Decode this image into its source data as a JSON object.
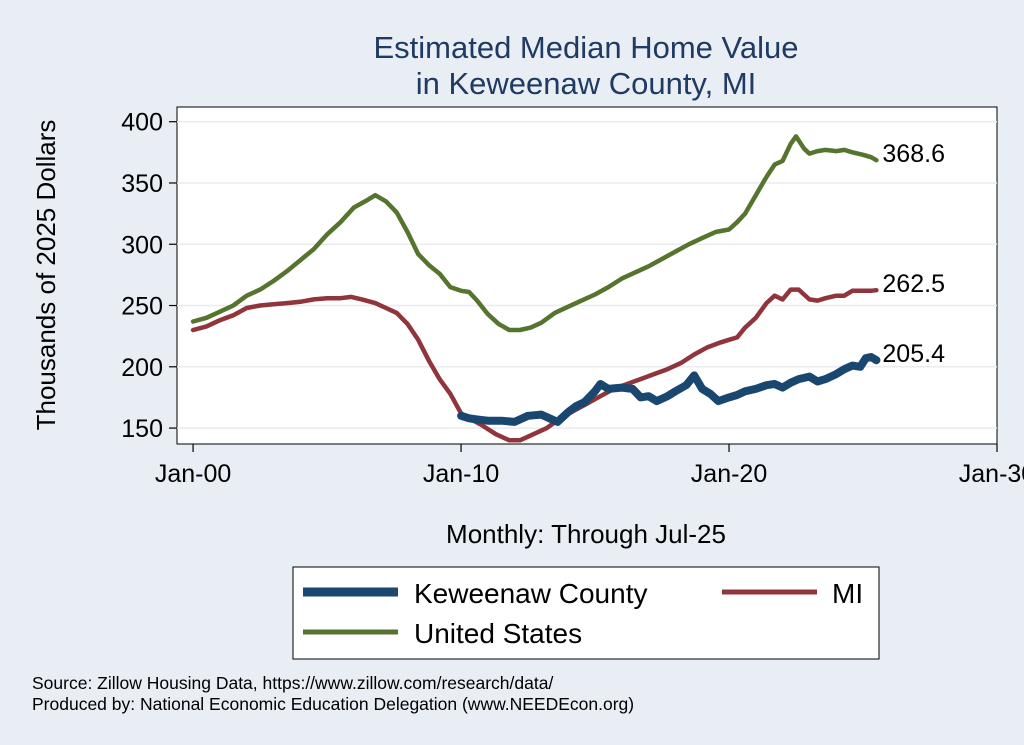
{
  "chart_data": {
    "type": "line",
    "title": [
      "Estimated Median Home Value",
      "in Keweenaw County, MI"
    ],
    "xlabel": "Monthly: Through Jul-25",
    "ylabel": "Thousands of 2025 Dollars",
    "x_unit": "year",
    "xlim": [
      1999.4,
      2030.0
    ],
    "ylim": [
      137,
      412
    ],
    "x_ticks": [
      {
        "value": 2000,
        "label": "Jan-00"
      },
      {
        "value": 2010,
        "label": "Jan-10"
      },
      {
        "value": 2020,
        "label": "Jan-20"
      },
      {
        "value": 2030,
        "label": "Jan-30"
      }
    ],
    "y_ticks": [
      150,
      200,
      250,
      300,
      350,
      400
    ],
    "grid": true,
    "legend_position": "bottom",
    "series": [
      {
        "name": "Keweenaw County",
        "color": "#1a476f",
        "end_label": "205.4",
        "points": [
          [
            2010.0,
            160
          ],
          [
            2010.3,
            158
          ],
          [
            2010.6,
            157
          ],
          [
            2011.0,
            156
          ],
          [
            2011.5,
            156
          ],
          [
            2012.0,
            155
          ],
          [
            2012.5,
            160
          ],
          [
            2013.0,
            161
          ],
          [
            2013.3,
            158
          ],
          [
            2013.6,
            155
          ],
          [
            2014.0,
            163
          ],
          [
            2014.3,
            168
          ],
          [
            2014.6,
            171
          ],
          [
            2015.0,
            180
          ],
          [
            2015.2,
            186
          ],
          [
            2015.5,
            182
          ],
          [
            2016.0,
            183
          ],
          [
            2016.4,
            182
          ],
          [
            2016.7,
            175
          ],
          [
            2017.0,
            176
          ],
          [
            2017.3,
            172
          ],
          [
            2017.7,
            176
          ],
          [
            2018.0,
            180
          ],
          [
            2018.4,
            185
          ],
          [
            2018.7,
            193
          ],
          [
            2019.0,
            182
          ],
          [
            2019.3,
            178
          ],
          [
            2019.6,
            172
          ],
          [
            2020.0,
            175
          ],
          [
            2020.3,
            177
          ],
          [
            2020.6,
            180
          ],
          [
            2021.0,
            182
          ],
          [
            2021.4,
            185
          ],
          [
            2021.7,
            186
          ],
          [
            2022.0,
            183
          ],
          [
            2022.3,
            187
          ],
          [
            2022.6,
            190
          ],
          [
            2023.0,
            192
          ],
          [
            2023.3,
            188
          ],
          [
            2023.6,
            190
          ],
          [
            2024.0,
            194
          ],
          [
            2024.3,
            198
          ],
          [
            2024.6,
            201
          ],
          [
            2024.9,
            200
          ],
          [
            2025.1,
            207
          ],
          [
            2025.3,
            208
          ],
          [
            2025.5,
            205.4
          ]
        ]
      },
      {
        "name": "MI",
        "color": "#90353b",
        "end_label": "262.5",
        "points": [
          [
            2000.0,
            230
          ],
          [
            2000.5,
            233
          ],
          [
            2001.0,
            238
          ],
          [
            2001.5,
            242
          ],
          [
            2002.0,
            248
          ],
          [
            2002.5,
            250
          ],
          [
            2003.0,
            251
          ],
          [
            2003.5,
            252
          ],
          [
            2004.0,
            253
          ],
          [
            2004.5,
            255
          ],
          [
            2005.0,
            256
          ],
          [
            2005.5,
            256
          ],
          [
            2005.9,
            257
          ],
          [
            2006.3,
            255
          ],
          [
            2006.8,
            252
          ],
          [
            2007.2,
            248
          ],
          [
            2007.6,
            244
          ],
          [
            2008.0,
            235
          ],
          [
            2008.4,
            222
          ],
          [
            2008.8,
            205
          ],
          [
            2009.2,
            190
          ],
          [
            2009.6,
            178
          ],
          [
            2010.0,
            162
          ],
          [
            2010.4,
            157
          ],
          [
            2010.8,
            152
          ],
          [
            2011.3,
            145
          ],
          [
            2011.8,
            140
          ],
          [
            2012.2,
            140
          ],
          [
            2012.7,
            145
          ],
          [
            2013.2,
            150
          ],
          [
            2013.7,
            158
          ],
          [
            2014.2,
            164
          ],
          [
            2014.7,
            170
          ],
          [
            2015.2,
            176
          ],
          [
            2015.7,
            182
          ],
          [
            2016.2,
            186
          ],
          [
            2016.7,
            190
          ],
          [
            2017.2,
            194
          ],
          [
            2017.7,
            198
          ],
          [
            2018.2,
            203
          ],
          [
            2018.7,
            210
          ],
          [
            2019.2,
            216
          ],
          [
            2019.7,
            220
          ],
          [
            2020.0,
            222
          ],
          [
            2020.3,
            224
          ],
          [
            2020.6,
            232
          ],
          [
            2021.0,
            240
          ],
          [
            2021.4,
            252
          ],
          [
            2021.7,
            258
          ],
          [
            2022.0,
            255
          ],
          [
            2022.3,
            263
          ],
          [
            2022.6,
            263
          ],
          [
            2023.0,
            255
          ],
          [
            2023.3,
            254
          ],
          [
            2023.6,
            256
          ],
          [
            2024.0,
            258
          ],
          [
            2024.3,
            258
          ],
          [
            2024.6,
            262
          ],
          [
            2025.0,
            262
          ],
          [
            2025.3,
            262
          ],
          [
            2025.5,
            262.5
          ]
        ]
      },
      {
        "name": "United States",
        "color": "#55752f",
        "end_label": "368.6",
        "points": [
          [
            2000.0,
            237
          ],
          [
            2000.5,
            240
          ],
          [
            2001.0,
            245
          ],
          [
            2001.5,
            250
          ],
          [
            2002.0,
            258
          ],
          [
            2002.5,
            263
          ],
          [
            2003.0,
            270
          ],
          [
            2003.5,
            278
          ],
          [
            2004.0,
            287
          ],
          [
            2004.5,
            296
          ],
          [
            2005.0,
            308
          ],
          [
            2005.5,
            318
          ],
          [
            2006.0,
            330
          ],
          [
            2006.5,
            336
          ],
          [
            2006.8,
            340
          ],
          [
            2007.2,
            335
          ],
          [
            2007.6,
            326
          ],
          [
            2008.0,
            310
          ],
          [
            2008.4,
            292
          ],
          [
            2008.8,
            283
          ],
          [
            2009.2,
            276
          ],
          [
            2009.6,
            265
          ],
          [
            2010.0,
            262
          ],
          [
            2010.3,
            261
          ],
          [
            2010.6,
            254
          ],
          [
            2011.0,
            243
          ],
          [
            2011.4,
            235
          ],
          [
            2011.8,
            230
          ],
          [
            2012.2,
            230
          ],
          [
            2012.6,
            232
          ],
          [
            2013.0,
            236
          ],
          [
            2013.5,
            244
          ],
          [
            2014.0,
            249
          ],
          [
            2014.5,
            254
          ],
          [
            2015.0,
            259
          ],
          [
            2015.5,
            265
          ],
          [
            2016.0,
            272
          ],
          [
            2016.5,
            277
          ],
          [
            2017.0,
            282
          ],
          [
            2017.5,
            288
          ],
          [
            2018.0,
            294
          ],
          [
            2018.5,
            300
          ],
          [
            2019.0,
            305
          ],
          [
            2019.5,
            310
          ],
          [
            2020.0,
            312
          ],
          [
            2020.3,
            318
          ],
          [
            2020.6,
            325
          ],
          [
            2021.0,
            340
          ],
          [
            2021.4,
            355
          ],
          [
            2021.7,
            365
          ],
          [
            2022.0,
            368
          ],
          [
            2022.3,
            382
          ],
          [
            2022.5,
            388
          ],
          [
            2022.8,
            378
          ],
          [
            2023.0,
            374
          ],
          [
            2023.3,
            376
          ],
          [
            2023.6,
            377
          ],
          [
            2024.0,
            376
          ],
          [
            2024.3,
            377
          ],
          [
            2024.6,
            375
          ],
          [
            2025.0,
            373
          ],
          [
            2025.3,
            371
          ],
          [
            2025.5,
            368.6
          ]
        ]
      }
    ]
  },
  "source_lines": [
    "Source: Zillow Housing Data, https://www.zillow.com/research/data/",
    "Produced by: National Economic Education Delegation (www.NEEDEcon.org)"
  ]
}
